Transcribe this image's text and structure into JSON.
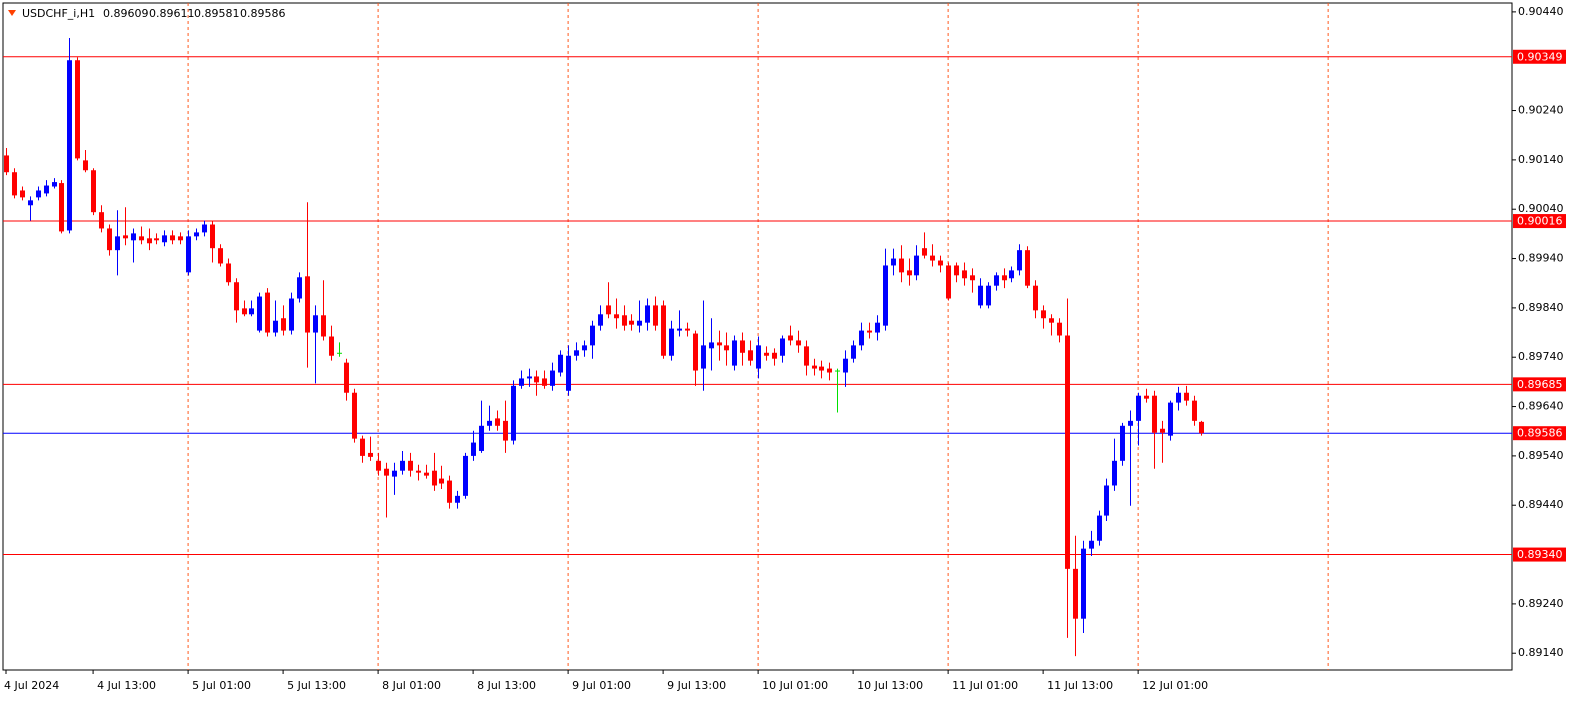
{
  "chart_data": {
    "type": "candlestick",
    "header": {
      "symbol": "USDCHF_i,H1",
      "ohlc": [
        0.89609,
        0.89611,
        0.89581,
        0.89586
      ]
    },
    "x": [
      "4 Jul 2024",
      null,
      null,
      null,
      null,
      null,
      null,
      null,
      null,
      null,
      null,
      "4 Jul 13:00",
      null,
      null,
      null,
      null,
      null,
      null,
      null,
      null,
      null,
      null,
      null,
      "5 Jul 01:00",
      null,
      null,
      null,
      null,
      null,
      null,
      null,
      null,
      null,
      null,
      null,
      "5 Jul 13:00",
      null,
      null,
      null,
      null,
      null,
      null,
      null,
      null,
      null,
      null,
      null,
      "8 Jul 01:00",
      null,
      null,
      null,
      null,
      null,
      null,
      null,
      null,
      null,
      null,
      null,
      "8 Jul 13:00",
      null,
      null,
      null,
      null,
      null,
      null,
      null,
      null,
      null,
      null,
      null,
      "9 Jul 01:00",
      null,
      null,
      null,
      null,
      null,
      null,
      null,
      null,
      null,
      null,
      null,
      "9 Jul 13:00",
      null,
      null,
      null,
      null,
      null,
      null,
      null,
      null,
      null,
      null,
      null,
      "10 Jul 01:00",
      null,
      null,
      null,
      null,
      null,
      null,
      null,
      null,
      null,
      null,
      null,
      "10 Jul 13:00",
      null,
      null,
      null,
      null,
      null,
      null,
      null,
      null,
      null,
      null,
      null,
      "11 Jul 01:00",
      null,
      null,
      null,
      null,
      null,
      null,
      null,
      null,
      null,
      null,
      null,
      "11 Jul 13:00",
      null,
      null,
      null,
      null,
      null,
      null,
      null,
      null,
      null,
      null,
      null,
      "12 Jul 01:00",
      null,
      null,
      null,
      null,
      null,
      null,
      null,
      null
    ],
    "open": [
      0.90149,
      0.90115,
      0.90078,
      0.90048,
      0.90064,
      0.90072,
      0.90086,
      0.90093,
      0.89997,
      0.90342,
      0.90139,
      0.90119,
      0.90034,
      0.90001,
      0.89957,
      0.89987,
      0.89977,
      0.89985,
      0.89981,
      0.89981,
      0.89973,
      0.89987,
      0.89985,
      0.89912,
      0.89985,
      0.89993,
      0.90009,
      0.89961,
      0.8993,
      0.89892,
      0.89839,
      0.89827,
      0.89794,
      0.89871,
      0.8979,
      0.89819,
      0.89794,
      0.89859,
      0.89904,
      0.8979,
      0.89825,
      0.89782,
      0.89749,
      0.89729,
      0.89668,
      0.89575,
      0.89546,
      0.8953,
      0.89514,
      0.89498,
      0.8951,
      0.8953,
      0.8951,
      0.89506,
      0.8951,
      0.89494,
      0.8949,
      0.89445,
      0.89459,
      0.8954,
      0.8955,
      0.89601,
      0.89616,
      0.89611,
      0.89571,
      0.89682,
      0.89697,
      0.89701,
      0.89697,
      0.89682,
      0.89709,
      0.89672,
      0.89743,
      0.89754,
      0.89764,
      0.89804,
      0.89845,
      0.89827,
      0.89825,
      0.89814,
      0.89804,
      0.8981,
      0.89845,
      0.89845,
      0.89743,
      0.89794,
      0.89798,
      0.89788,
      0.89717,
      0.89758,
      0.8977,
      0.89764,
      0.89723,
      0.89774,
      0.89754,
      0.89717,
      0.89749,
      0.89749,
      0.89743,
      0.89784,
      0.89774,
      0.89762,
      0.89723,
      0.89721,
      0.89717,
      0.89713,
      0.89709,
      0.89737,
      0.89764,
      0.89794,
      0.8979,
      0.89804,
      0.89926,
      0.8994,
      0.89916,
      0.89906,
      0.89961,
      0.89946,
      0.89936,
      0.89926,
      0.89926,
      0.89916,
      0.89906,
      0.89845,
      0.89845,
      0.89885,
      0.89906,
      0.899,
      0.89916,
      0.89957,
      0.89885,
      0.89835,
      0.89819,
      0.8981,
      0.89784,
      0.89311,
      0.8921,
      0.89352,
      0.89368,
      0.89419,
      0.8948,
      0.8953,
      0.89601,
      0.89611,
      0.89662,
      0.89662,
      0.89595,
      0.89581,
      0.89648,
      0.89668,
      0.89652,
      0.89609
    ],
    "high": [
      0.90164,
      0.90123,
      0.90086,
      0.90066,
      0.90086,
      0.90099,
      0.90103,
      0.90099,
      0.90387,
      0.90348,
      0.9016,
      0.90123,
      0.90048,
      0.90009,
      0.90038,
      0.90044,
      0.90001,
      0.90005,
      0.90001,
      0.89991,
      0.89997,
      0.89997,
      0.89993,
      0.89997,
      0.90001,
      0.90017,
      0.90017,
      0.89969,
      0.8994,
      0.899,
      0.89855,
      0.89855,
      0.89871,
      0.8988,
      0.89855,
      0.89845,
      0.89871,
      0.89912,
      0.90054,
      0.89845,
      0.89896,
      0.89804,
      0.8977,
      0.89737,
      0.89676,
      0.89581,
      0.89579,
      0.89546,
      0.89526,
      0.89526,
      0.8955,
      0.89546,
      0.89522,
      0.89522,
      0.89546,
      0.8952,
      0.895,
      0.89469,
      0.89546,
      0.89591,
      0.89652,
      0.89642,
      0.89632,
      0.89652,
      0.89693,
      0.89713,
      0.89717,
      0.89713,
      0.89713,
      0.89729,
      0.89754,
      0.89764,
      0.8977,
      0.89774,
      0.89814,
      0.89845,
      0.89892,
      0.89859,
      0.89845,
      0.89827,
      0.89855,
      0.89859,
      0.89863,
      0.89855,
      0.89814,
      0.89835,
      0.8981,
      0.89794,
      0.89855,
      0.89819,
      0.89794,
      0.8979,
      0.89784,
      0.8979,
      0.89774,
      0.89782,
      0.89762,
      0.89758,
      0.89784,
      0.89804,
      0.89794,
      0.89774,
      0.89737,
      0.89733,
      0.89729,
      0.89717,
      0.89754,
      0.89774,
      0.8981,
      0.8981,
      0.89825,
      0.8996,
      0.8996,
      0.89967,
      0.8994,
      0.89967,
      0.89993,
      0.89969,
      0.89946,
      0.89932,
      0.89932,
      0.89932,
      0.8992,
      0.899,
      0.89892,
      0.89912,
      0.8992,
      0.89924,
      0.89969,
      0.89965,
      0.89896,
      0.89845,
      0.89827,
      0.89819,
      0.89859,
      0.89378,
      0.89368,
      0.89388,
      0.89429,
      0.89494,
      0.89575,
      0.89607,
      0.89632,
      0.89668,
      0.89676,
      0.89672,
      0.89611,
      0.89652,
      0.8968,
      0.89682,
      0.89662,
      0.89611
    ],
    "low": [
      0.90109,
      0.90062,
      0.90058,
      0.90017,
      0.90058,
      0.90066,
      0.90082,
      0.89991,
      0.89991,
      0.90139,
      0.90115,
      0.90028,
      0.89993,
      0.89946,
      0.89906,
      0.89967,
      0.89932,
      0.89969,
      0.89957,
      0.89969,
      0.89965,
      0.89969,
      0.89969,
      0.89906,
      0.89977,
      0.89985,
      0.89932,
      0.89924,
      0.89885,
      0.8981,
      0.89823,
      0.89823,
      0.8979,
      0.89782,
      0.89782,
      0.89784,
      0.89786,
      0.89851,
      0.89719,
      0.89687,
      0.89774,
      0.89733,
      0.89741,
      0.89652,
      0.89567,
      0.89526,
      0.8953,
      0.895,
      0.89415,
      0.89461,
      0.89502,
      0.89498,
      0.8949,
      0.89494,
      0.89469,
      0.89473,
      0.89433,
      0.89433,
      0.89453,
      0.8953,
      0.89546,
      0.89591,
      0.89591,
      0.89546,
      0.89563,
      0.89676,
      0.8968,
      0.89662,
      0.89676,
      0.89672,
      0.89701,
      0.89662,
      0.89733,
      0.89741,
      0.89737,
      0.89794,
      0.89819,
      0.89798,
      0.89794,
      0.89794,
      0.8979,
      0.89794,
      0.89794,
      0.89737,
      0.89733,
      0.89782,
      0.89782,
      0.89682,
      0.89672,
      0.89713,
      0.89733,
      0.89723,
      0.89713,
      0.89723,
      0.89723,
      0.89697,
      0.89733,
      0.89723,
      0.89729,
      0.89764,
      0.89749,
      0.89703,
      0.89703,
      0.89697,
      0.89693,
      0.89628,
      0.8968,
      0.89729,
      0.89754,
      0.89778,
      0.89774,
      0.89794,
      0.89906,
      0.89892,
      0.89885,
      0.89896,
      0.8994,
      0.89924,
      0.89912,
      0.89855,
      0.89892,
      0.89885,
      0.89871,
      0.89839,
      0.89839,
      0.89875,
      0.8988,
      0.89892,
      0.89906,
      0.8988,
      0.89819,
      0.89798,
      0.89784,
      0.8977,
      0.89171,
      0.89134,
      0.89181,
      0.89337,
      0.89358,
      0.89408,
      0.89469,
      0.8952,
      0.89439,
      0.89561,
      0.89648,
      0.89514,
      0.89526,
      0.89571,
      0.89632,
      0.89642,
      0.89601,
      0.89581
    ],
    "close": [
      0.90115,
      0.90068,
      0.90064,
      0.90058,
      0.90078,
      0.90088,
      0.90095,
      0.89995,
      0.90342,
      0.90143,
      0.90119,
      0.90034,
      0.90001,
      0.89957,
      0.89985,
      0.89981,
      0.89991,
      0.89977,
      0.89971,
      0.89977,
      0.89987,
      0.89977,
      0.89977,
      0.89985,
      0.89993,
      0.90009,
      0.89961,
      0.8993,
      0.89892,
      0.89835,
      0.89827,
      0.89839,
      0.89863,
      0.8979,
      0.89814,
      0.89794,
      0.89859,
      0.89902,
      0.8979,
      0.89825,
      0.89782,
      0.89743,
      0.89749,
      0.89668,
      0.89575,
      0.8954,
      0.89538,
      0.8951,
      0.895,
      0.8951,
      0.8953,
      0.8951,
      0.89506,
      0.895,
      0.8948,
      0.89484,
      0.89445,
      0.89459,
      0.8954,
      0.89567,
      0.89601,
      0.89611,
      0.89601,
      0.89571,
      0.89682,
      0.89697,
      0.89701,
      0.89689,
      0.89682,
      0.89713,
      0.89745,
      0.89743,
      0.89754,
      0.89764,
      0.89804,
      0.89827,
      0.89827,
      0.89819,
      0.89804,
      0.89806,
      0.89814,
      0.89845,
      0.89804,
      0.89743,
      0.89798,
      0.89798,
      0.89794,
      0.89713,
      0.89764,
      0.8977,
      0.89764,
      0.89754,
      0.89774,
      0.89749,
      0.89733,
      0.89764,
      0.89743,
      0.89737,
      0.89778,
      0.89774,
      0.89764,
      0.89723,
      0.89717,
      0.89713,
      0.89709,
      0.89713,
      0.89737,
      0.89764,
      0.89794,
      0.8979,
      0.8981,
      0.89926,
      0.8994,
      0.89912,
      0.89906,
      0.89946,
      0.89946,
      0.89936,
      0.89926,
      0.89859,
      0.89906,
      0.899,
      0.89896,
      0.89885,
      0.89885,
      0.89906,
      0.89896,
      0.89916,
      0.89957,
      0.89885,
      0.89835,
      0.89819,
      0.8981,
      0.89784,
      0.89311,
      0.8921,
      0.89352,
      0.89368,
      0.89419,
      0.8948,
      0.8953,
      0.89601,
      0.89611,
      0.89662,
      0.89656,
      0.89587,
      0.89587,
      0.89648,
      0.89668,
      0.89652,
      0.89611,
      0.89586
    ],
    "up_color": "#0000ff",
    "down_color": "#ff0000",
    "doji_color": "#00e000",
    "ylim": [
      0.89106,
      0.90458
    ],
    "yticks": [
      {
        "value": 0.9044,
        "label": "0.90440"
      },
      {
        "value": 0.9024,
        "label": "0.90240"
      },
      {
        "value": 0.9014,
        "label": "0.90140"
      },
      {
        "value": 0.9004,
        "label": "0.90040"
      },
      {
        "value": 0.8994,
        "label": "0.89940"
      },
      {
        "value": 0.8984,
        "label": "0.89840"
      },
      {
        "value": 0.8974,
        "label": "0.89740"
      },
      {
        "value": 0.8964,
        "label": "0.89640"
      },
      {
        "value": 0.8954,
        "label": "0.89540"
      },
      {
        "value": 0.8944,
        "label": "0.89440"
      },
      {
        "value": 0.8924,
        "label": "0.89240"
      },
      {
        "value": 0.8914,
        "label": "0.89140"
      }
    ],
    "levels": [
      {
        "value": 0.90349,
        "label": "0.90349",
        "color": "#ff0000"
      },
      {
        "value": 0.90016,
        "label": "0.90016",
        "color": "#ff0000"
      },
      {
        "value": 0.89685,
        "label": "0.89685",
        "color": "#ff0000"
      },
      {
        "value": 0.8934,
        "label": "0.89340",
        "color": "#ff0000"
      },
      {
        "value": 0.89586,
        "label": "0.89586",
        "color": "#0000ff"
      }
    ],
    "level_label_background": "#ff0000",
    "separator_color": "#ff5a1f"
  }
}
